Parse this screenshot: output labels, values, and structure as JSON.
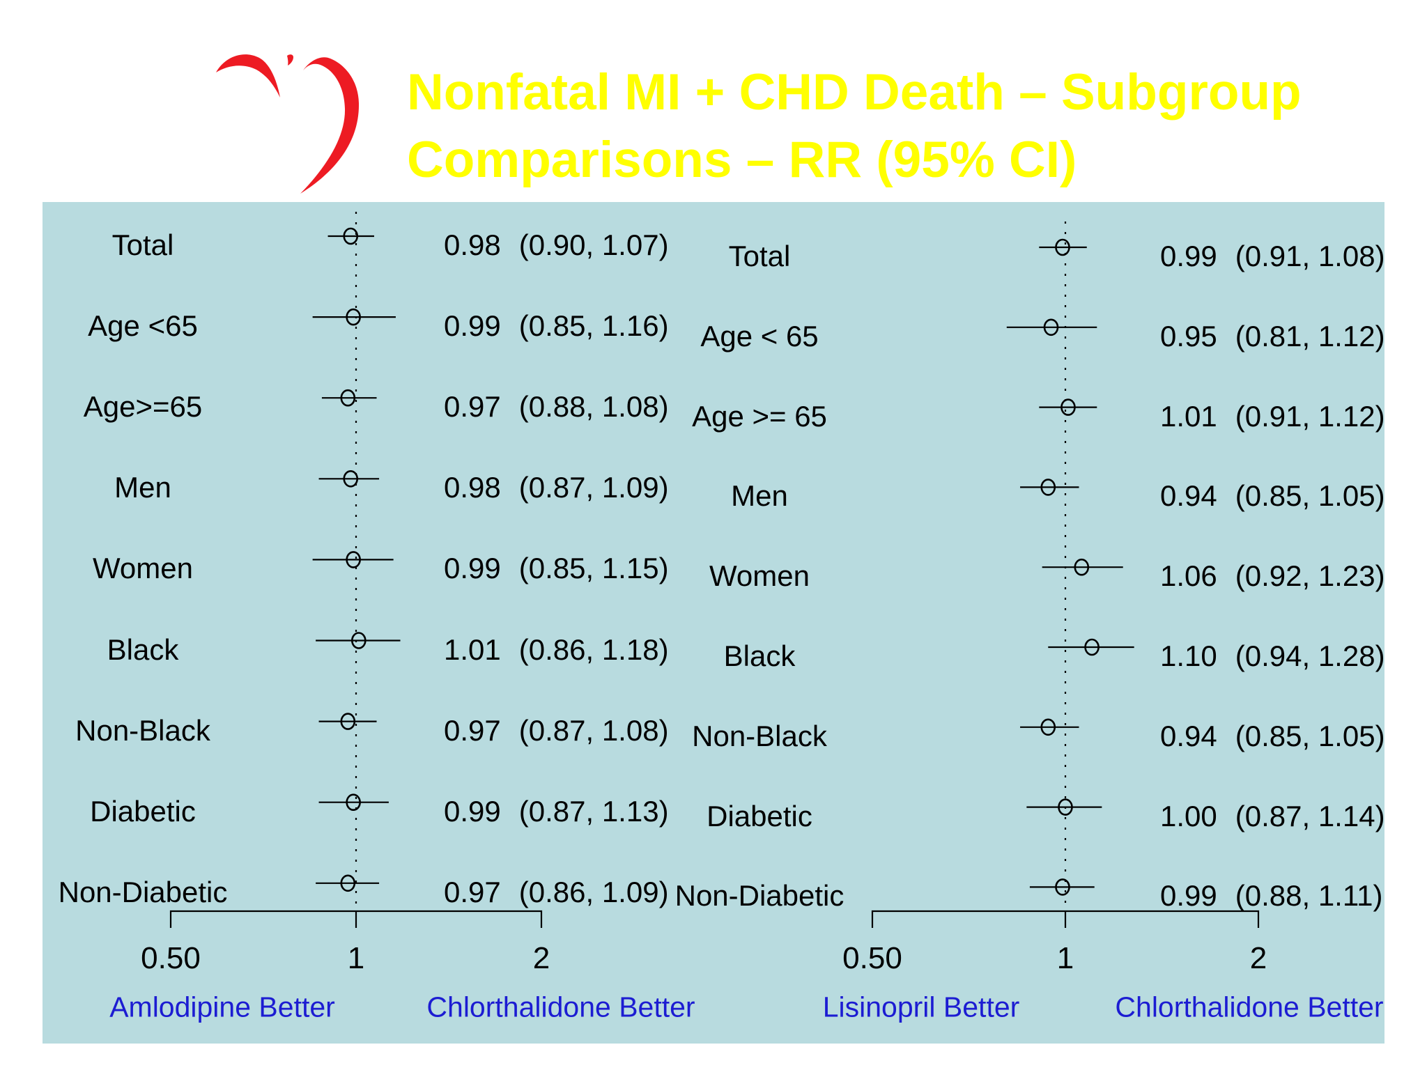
{
  "title": {
    "line1": "Nonfatal MI + CHD Death – Subgroup",
    "line2": "Comparisons – RR (95% CI)"
  },
  "colors": {
    "title_text": "#ffff00",
    "panel_background": "#b8dbdf",
    "heart_red": "#ed1b23",
    "better_label_blue": "#1c1cd2",
    "plot_ink": "#000000"
  },
  "chart_data": [
    {
      "type": "scatter",
      "variant": "forest-plot",
      "title": "Amlodipine vs Chlorthalidone — Nonfatal MI + CHD Death RR (95% CI)",
      "x_axis": {
        "scale": "log",
        "range": [
          0.5,
          2
        ],
        "reference_line": 1,
        "ticks": [
          {
            "label": "0.50",
            "value": 0.5
          },
          {
            "label": "1",
            "value": 1
          },
          {
            "label": "2",
            "value": 2
          }
        ]
      },
      "footer_left": "Amlodipine Better",
      "footer_right": "Chlorthalidone Better",
      "rows": [
        {
          "label": "Total",
          "rr": 0.98,
          "ci_low": 0.9,
          "ci_high": 1.07,
          "rr_text": "0.98",
          "ci_text": "(0.90, 1.07)"
        },
        {
          "label": "Age <65",
          "rr": 0.99,
          "ci_low": 0.85,
          "ci_high": 1.16,
          "rr_text": "0.99",
          "ci_text": "(0.85, 1.16)"
        },
        {
          "label": "Age>=65",
          "rr": 0.97,
          "ci_low": 0.88,
          "ci_high": 1.08,
          "rr_text": "0.97",
          "ci_text": "(0.88, 1.08)"
        },
        {
          "label": "Men",
          "rr": 0.98,
          "ci_low": 0.87,
          "ci_high": 1.09,
          "rr_text": "0.98",
          "ci_text": "(0.87, 1.09)"
        },
        {
          "label": "Women",
          "rr": 0.99,
          "ci_low": 0.85,
          "ci_high": 1.15,
          "rr_text": "0.99",
          "ci_text": "(0.85, 1.15)"
        },
        {
          "label": "Black",
          "rr": 1.01,
          "ci_low": 0.86,
          "ci_high": 1.18,
          "rr_text": "1.01",
          "ci_text": "(0.86, 1.18)"
        },
        {
          "label": "Non-Black",
          "rr": 0.97,
          "ci_low": 0.87,
          "ci_high": 1.08,
          "rr_text": "0.97",
          "ci_text": "(0.87, 1.08)"
        },
        {
          "label": "Diabetic",
          "rr": 0.99,
          "ci_low": 0.87,
          "ci_high": 1.13,
          "rr_text": "0.99",
          "ci_text": "(0.87, 1.13)"
        },
        {
          "label": "Non-Diabetic",
          "rr": 0.97,
          "ci_low": 0.86,
          "ci_high": 1.09,
          "rr_text": "0.97",
          "ci_text": "(0.86, 1.09)"
        }
      ]
    },
    {
      "type": "scatter",
      "variant": "forest-plot",
      "title": "Lisinopril vs Chlorthalidone — Nonfatal MI + CHD Death RR (95% CI)",
      "x_axis": {
        "scale": "log",
        "range": [
          0.5,
          2
        ],
        "reference_line": 1,
        "ticks": [
          {
            "label": "0.50",
            "value": 0.5
          },
          {
            "label": "1",
            "value": 1
          },
          {
            "label": "2",
            "value": 2
          }
        ]
      },
      "footer_left": "Lisinopril Better",
      "footer_right": "Chlorthalidone Better",
      "rows": [
        {
          "label": "Total",
          "rr": 0.99,
          "ci_low": 0.91,
          "ci_high": 1.08,
          "rr_text": "0.99",
          "ci_text": "(0.91, 1.08)"
        },
        {
          "label": "Age < 65",
          "rr": 0.95,
          "ci_low": 0.81,
          "ci_high": 1.12,
          "rr_text": "0.95",
          "ci_text": "(0.81, 1.12)"
        },
        {
          "label": "Age >= 65",
          "rr": 1.01,
          "ci_low": 0.91,
          "ci_high": 1.12,
          "rr_text": "1.01",
          "ci_text": "(0.91, 1.12)"
        },
        {
          "label": "Men",
          "rr": 0.94,
          "ci_low": 0.85,
          "ci_high": 1.05,
          "rr_text": "0.94",
          "ci_text": "(0.85, 1.05)"
        },
        {
          "label": "Women",
          "rr": 1.06,
          "ci_low": 0.92,
          "ci_high": 1.23,
          "rr_text": "1.06",
          "ci_text": "(0.92, 1.23)"
        },
        {
          "label": "Black",
          "rr": 1.1,
          "ci_low": 0.94,
          "ci_high": 1.28,
          "rr_text": "1.10",
          "ci_text": "(0.94, 1.28)"
        },
        {
          "label": "Non-Black",
          "rr": 0.94,
          "ci_low": 0.85,
          "ci_high": 1.05,
          "rr_text": "0.94",
          "ci_text": "(0.85, 1.05)"
        },
        {
          "label": "Diabetic",
          "rr": 1.0,
          "ci_low": 0.87,
          "ci_high": 1.14,
          "rr_text": "1.00",
          "ci_text": "(0.87, 1.14)"
        },
        {
          "label": "Non-Diabetic",
          "rr": 0.99,
          "ci_low": 0.88,
          "ci_high": 1.11,
          "rr_text": "0.99",
          "ci_text": "(0.88, 1.11)"
        }
      ]
    }
  ]
}
